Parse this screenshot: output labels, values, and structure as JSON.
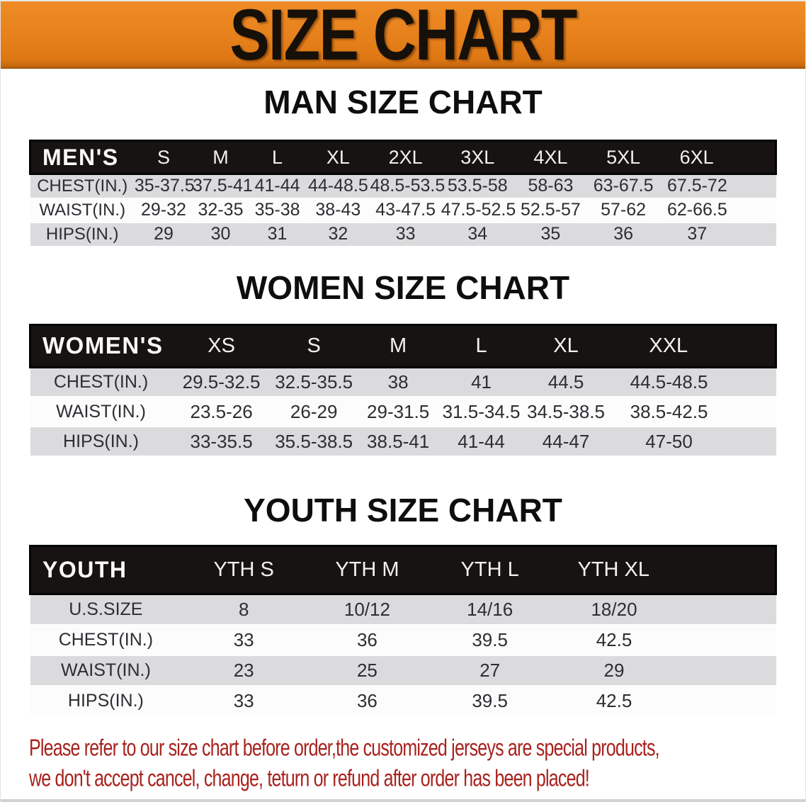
{
  "banner": {
    "title": "SIZE CHART"
  },
  "colors": {
    "banner_orange": "#E6801B",
    "header_band_black": "#171312",
    "row_gray": "#DBDBDD",
    "row_white": "#FCFCFC",
    "disclaimer_red": "#A8221E"
  },
  "men": {
    "title": "MAN SIZE CHART",
    "corner_label": "MEN'S",
    "sizes": [
      "S",
      "M",
      "L",
      "XL",
      "2XL",
      "3XL",
      "4XL",
      "5XL",
      "6XL"
    ],
    "rows": [
      {
        "label": "CHEST(IN.)",
        "values": [
          "35-37.5",
          "37.5-41",
          "41-44",
          "44-48.5",
          "48.5-53.5",
          "53.5-58",
          "58-63",
          "63-67.5",
          "67.5-72"
        ]
      },
      {
        "label": "WAIST(IN.)",
        "values": [
          "29-32",
          "32-35",
          "35-38",
          "38-43",
          "43-47.5",
          "47.5-52.5",
          "52.5-57",
          "57-62",
          "62-66.5"
        ]
      },
      {
        "label": "HIPS(IN.)",
        "values": [
          "29",
          "30",
          "31",
          "32",
          "33",
          "34",
          "35",
          "36",
          "37"
        ]
      }
    ]
  },
  "women": {
    "title": "WOMEN SIZE CHART",
    "corner_label": "WOMEN'S",
    "sizes": [
      "XS",
      "S",
      "M",
      "L",
      "XL",
      "XXL"
    ],
    "rows": [
      {
        "label": "CHEST(IN.)",
        "values": [
          "29.5-32.5",
          "32.5-35.5",
          "38",
          "41",
          "44.5",
          "44.5-48.5"
        ]
      },
      {
        "label": "WAIST(IN.)",
        "values": [
          "23.5-26",
          "26-29",
          "29-31.5",
          "31.5-34.5",
          "34.5-38.5",
          "38.5-42.5"
        ]
      },
      {
        "label": "HIPS(IN.)",
        "values": [
          "33-35.5",
          "35.5-38.5",
          "38.5-41",
          "41-44",
          "44-47",
          "47-50"
        ]
      }
    ]
  },
  "youth": {
    "title": "YOUTH SIZE CHART",
    "corner_label": "YOUTH",
    "sizes": [
      "YTH S",
      "YTH M",
      "YTH L",
      "YTH XL"
    ],
    "rows": [
      {
        "label": "U.S.SIZE",
        "values": [
          "8",
          "10/12",
          "14/16",
          "18/20"
        ]
      },
      {
        "label": "CHEST(IN.)",
        "values": [
          "33",
          "36",
          "39.5",
          "42.5"
        ]
      },
      {
        "label": "WAIST(IN.)",
        "values": [
          "23",
          "25",
          "27",
          "29"
        ]
      },
      {
        "label": "HIPS(IN.)",
        "values": [
          "33",
          "36",
          "39.5",
          "42.5"
        ]
      }
    ]
  },
  "disclaimer": {
    "line1": "Please refer to our size chart before order,the customized jerseys are special products,",
    "line2": "we don't accept cancel, change, teturn or refund after order has been placed!"
  }
}
